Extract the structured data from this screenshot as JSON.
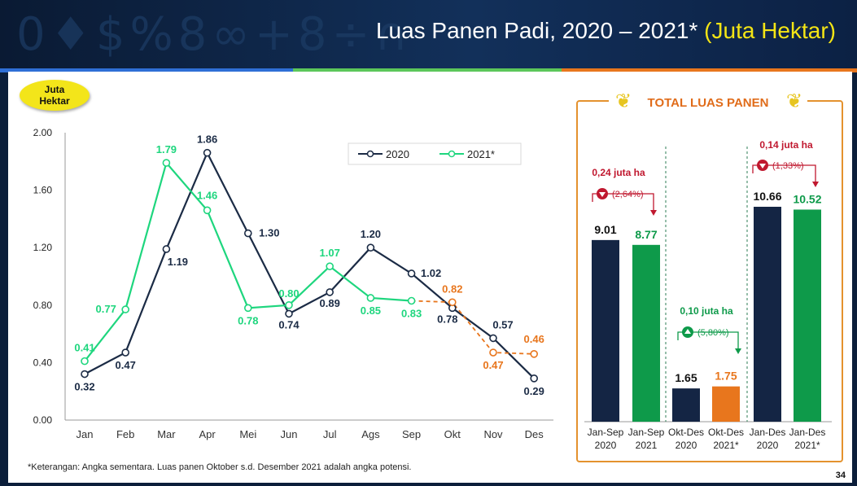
{
  "header": {
    "title_main": "Luas Panen Padi, 2020 – 2021*",
    "title_unit": "(Juta Hektar)",
    "page_number": "34"
  },
  "colors": {
    "series_2020": "#1b2b45",
    "series_2021": "#1ed67e",
    "projection": "#e8761d",
    "bar_2021": "#0e9a4a",
    "accent_red": "#c0182f"
  },
  "badge": {
    "line1": "Juta",
    "line2": "Hektar"
  },
  "note": "*Keterangan: Angka sementara. Luas panen Oktober s.d. Desember 2021 adalah angka potensi.",
  "total_panel": {
    "title": "TOTAL LUAS PANEN"
  },
  "chart_data": [
    {
      "type": "line",
      "categories": [
        "Jan",
        "Feb",
        "Mar",
        "Apr",
        "Mei",
        "Jun",
        "Jul",
        "Ags",
        "Sep",
        "Okt",
        "Nov",
        "Des"
      ],
      "ylim": [
        0,
        2
      ],
      "yticks": [
        "0.00",
        "0.40",
        "0.80",
        "1.20",
        "1.60",
        "2.00"
      ],
      "grid": false,
      "legend": "top-right",
      "series": [
        {
          "name": "2020",
          "color": "#1b2b45",
          "values": [
            0.32,
            0.47,
            1.19,
            1.86,
            1.3,
            0.74,
            0.89,
            1.2,
            1.02,
            0.78,
            0.57,
            0.29
          ],
          "labels": [
            "0.32",
            "0.47",
            "1.19",
            "1.86",
            "1.30",
            "0.74",
            "0.89",
            "1.20",
            "1.02",
            "0.78",
            "0.57",
            "0.29"
          ]
        },
        {
          "name": "2021*",
          "color": "#1ed67e",
          "values": [
            0.41,
            0.77,
            1.79,
            1.46,
            0.78,
            0.8,
            1.07,
            0.85,
            0.83,
            0.82,
            0.47,
            0.46
          ],
          "labels": [
            "0.41",
            "0.77",
            "1.79",
            "1.46",
            "0.78",
            "0.80",
            "1.07",
            "0.85",
            "0.83",
            "0.82",
            "0.47",
            "0.46"
          ],
          "projection_from_index": 8
        }
      ]
    },
    {
      "type": "bar",
      "categories": [
        "Jan-Sep 2020",
        "Jan-Sep 2021",
        "Okt-Des 2020",
        "Okt-Des 2021*",
        "Jan-Des 2020",
        "Jan-Des 2021*"
      ],
      "values": [
        9.01,
        8.77,
        1.65,
        1.75,
        10.66,
        10.52
      ],
      "value_labels": [
        "9.01",
        "8.77",
        "1.65",
        "1.75",
        "10.66",
        "10.52"
      ],
      "groups": [
        {
          "change": "0,24 juta ha",
          "pct": "(2,64%)",
          "direction": "down"
        },
        {
          "change": "0,10 juta ha",
          "pct": "(5,80%)",
          "direction": "up"
        },
        {
          "change": "0,14 juta ha",
          "pct": "(1,33%)",
          "direction": "down"
        }
      ]
    }
  ]
}
